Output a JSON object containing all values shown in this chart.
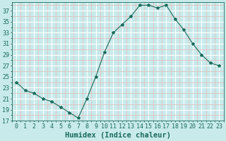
{
  "x": [
    0,
    1,
    2,
    3,
    4,
    5,
    6,
    7,
    8,
    9,
    10,
    11,
    12,
    13,
    14,
    15,
    16,
    17,
    18,
    19,
    20,
    21,
    22,
    23
  ],
  "y": [
    24,
    22.5,
    22,
    21,
    20.5,
    19.5,
    18.5,
    17.5,
    21,
    25,
    29.5,
    33,
    34.5,
    36,
    38,
    38,
    37.5,
    38,
    35.5,
    33.5,
    31,
    29,
    27.5,
    27
  ],
  "line_color": "#1a6b5a",
  "bg_color": "#c8eaeb",
  "grid_major_color": "#ffffff",
  "grid_minor_color": "#e8b8b8",
  "xlabel": "Humidex (Indice chaleur)",
  "ylim": [
    17,
    38.5
  ],
  "xlim": [
    -0.5,
    23.5
  ],
  "yticks": [
    17,
    19,
    21,
    23,
    25,
    27,
    29,
    31,
    33,
    35,
    37
  ],
  "xtick_labels": [
    "0",
    "1",
    "2",
    "3",
    "4",
    "5",
    "6",
    "7",
    "8",
    "9",
    "10",
    "11",
    "12",
    "13",
    "14",
    "15",
    "16",
    "17",
    "18",
    "19",
    "20",
    "21",
    "22",
    "23"
  ],
  "font_color": "#1a6b5a",
  "font_size": 6.0,
  "xlabel_fontsize": 7.5
}
